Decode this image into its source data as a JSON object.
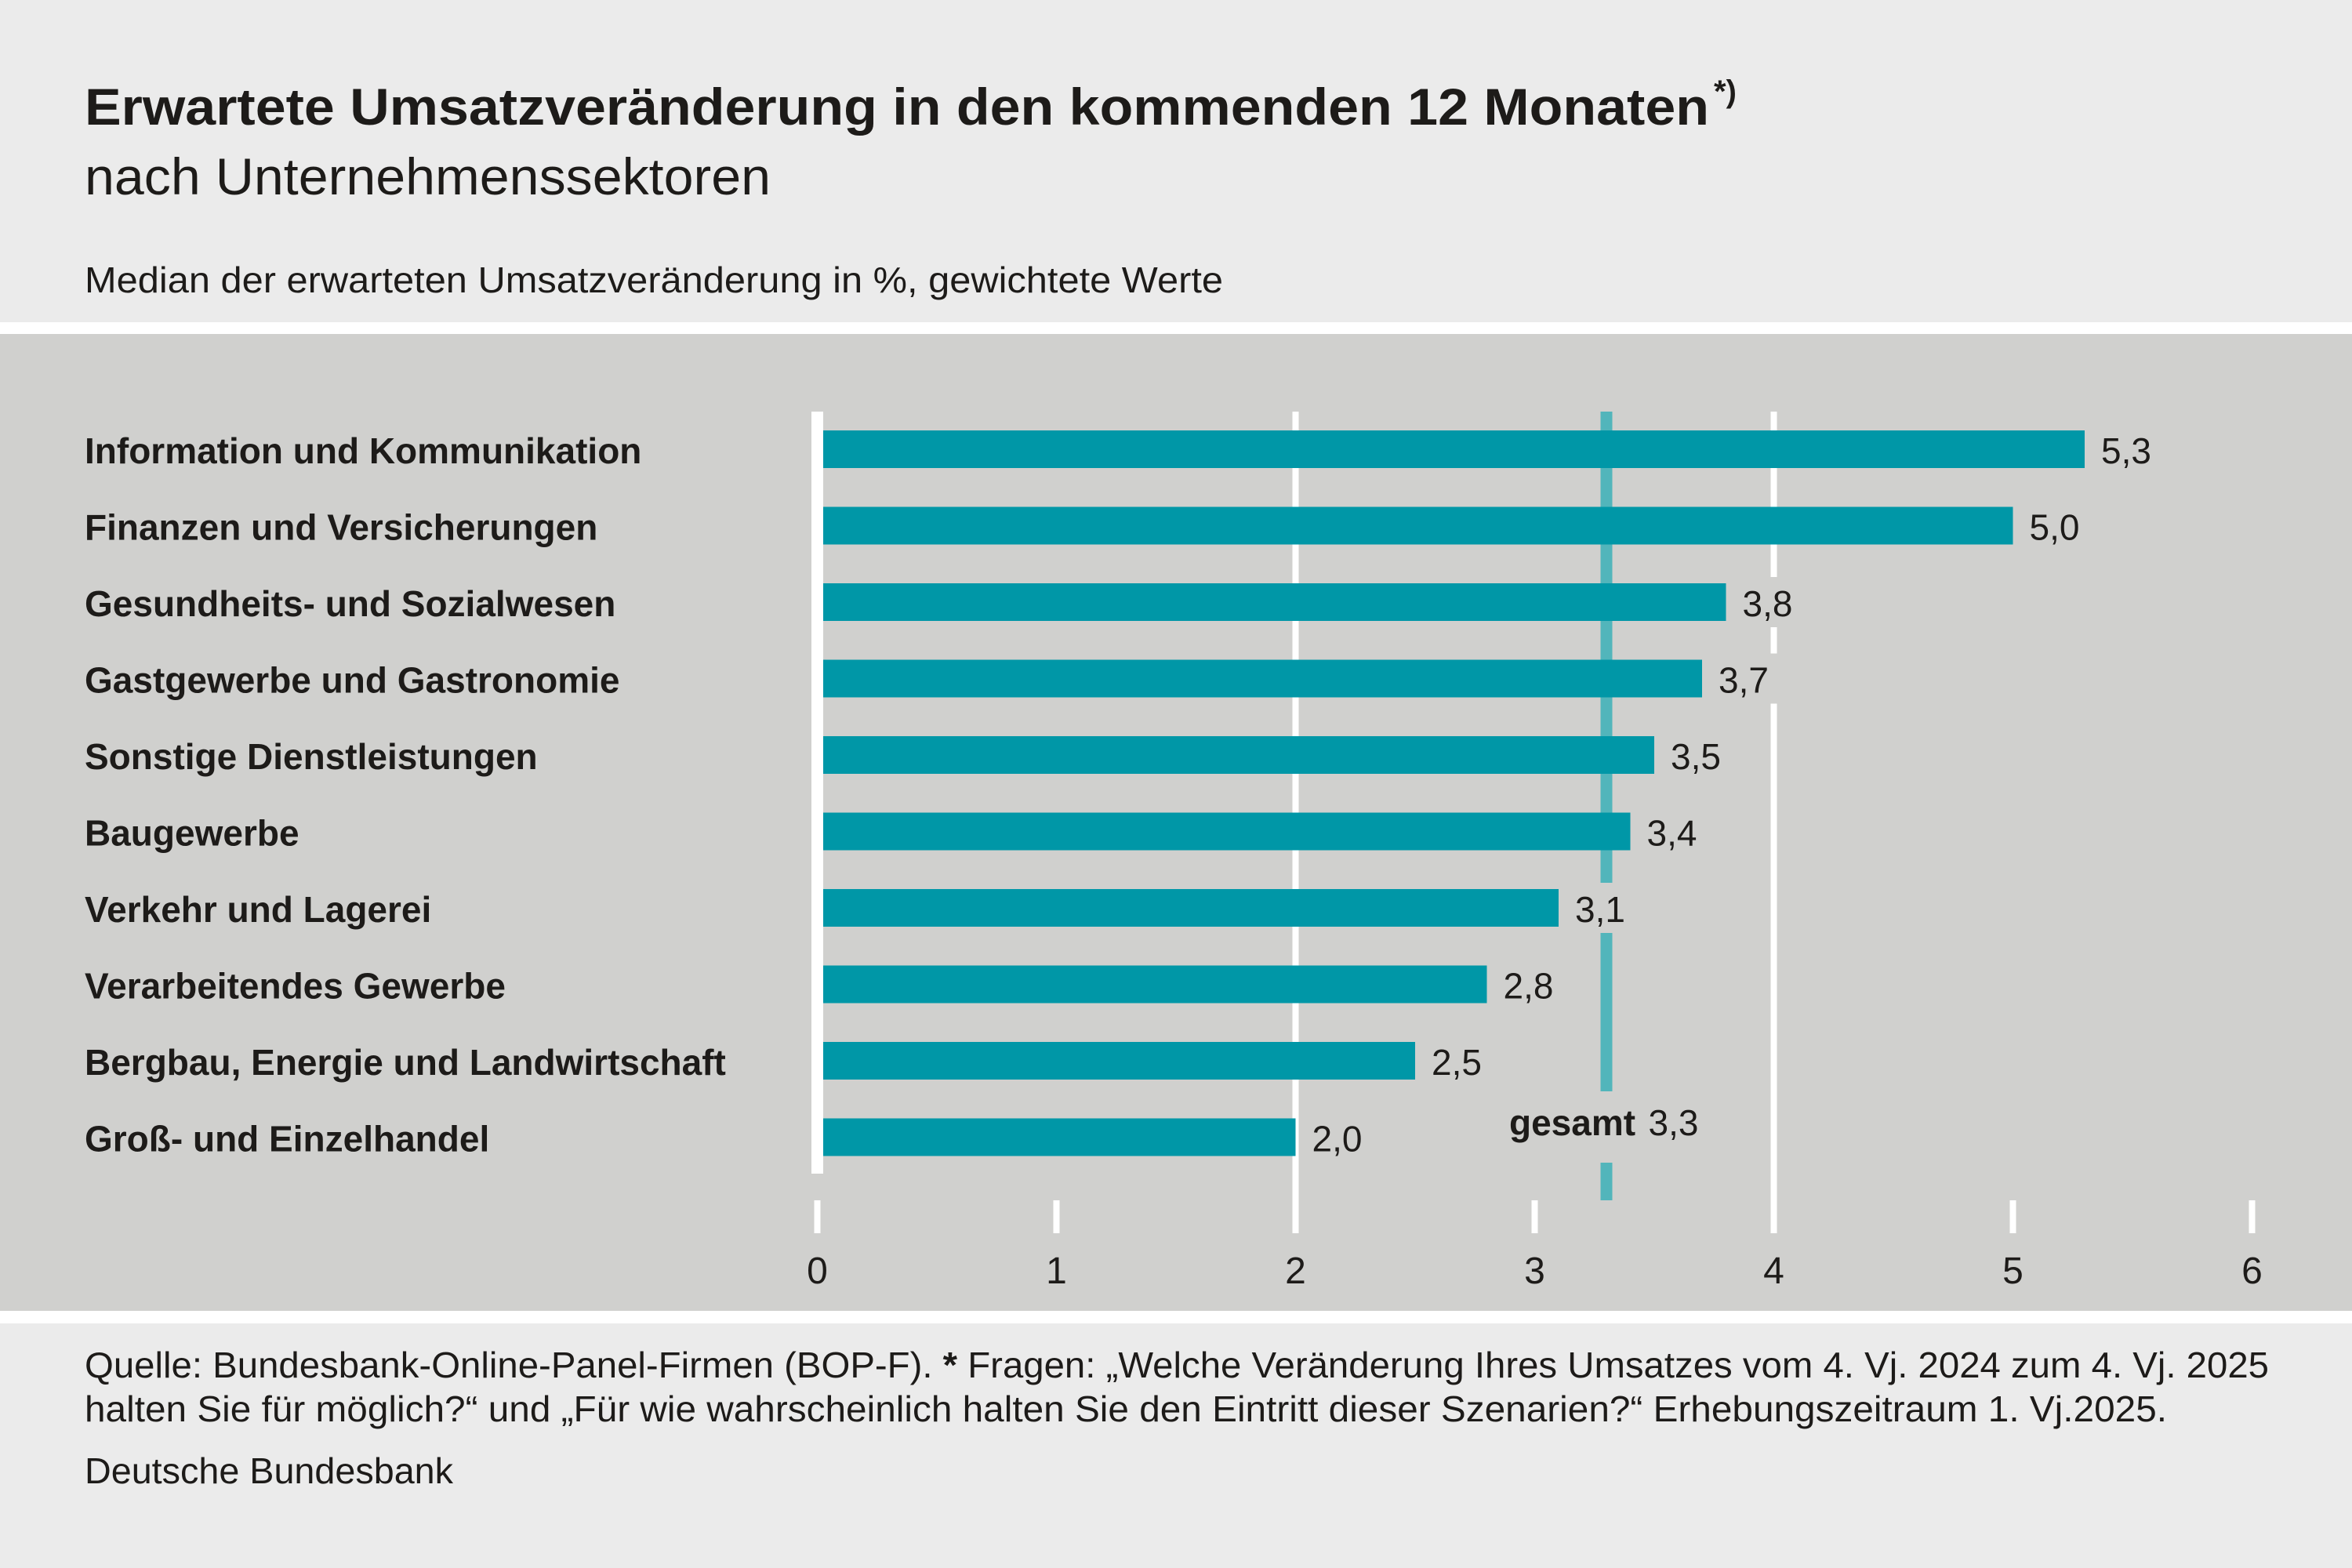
{
  "header": {
    "title": "Erwartete Umsatzveränderung in den kommenden 12 Monaten",
    "title_marker": "*)",
    "subtitle": "nach Unternehmenssektoren",
    "unit_note": "Median der erwarteten Umsatzveränderung in %, gewichtete Werte"
  },
  "colors": {
    "header_bg": "#ebebeb",
    "chart_bg": "#d0d0ce",
    "separator": "#ffffff",
    "bar": "#0097a7",
    "reference_line": "#52b5bb",
    "gridline": "#ffffff",
    "text": "#1d1b19"
  },
  "chart_data": {
    "type": "bar",
    "orientation": "horizontal",
    "title": "Erwartete Umsatzveränderung in den kommenden 12 Monaten",
    "subtitle": "nach Unternehmenssektoren",
    "xlabel": "Median der erwarteten Umsatzveränderung in %, gewichtete Werte",
    "ylabel": "",
    "categories": [
      "Information und Kommunikation",
      "Finanzen und Versicherungen",
      "Gesundheits- und Sozialwesen",
      "Gastgewerbe und Gastronomie",
      "Sonstige Dienstleistungen",
      "Baugewerbe",
      "Verkehr und Lagerei",
      "Verarbeitendes Gewerbe",
      "Bergbau, Energie und Landwirtschaft",
      "Groß- und Einzelhandel"
    ],
    "values": [
      5.3,
      5.0,
      3.8,
      3.7,
      3.5,
      3.4,
      3.1,
      2.8,
      2.5,
      2.0
    ],
    "value_labels": [
      "5,3",
      "5,0",
      "3,8",
      "3,7",
      "3,5",
      "3,4",
      "3,1",
      "2,8",
      "2,5",
      "2,0"
    ],
    "xlim": [
      0,
      6
    ],
    "xticks": [
      0,
      1,
      2,
      3,
      4,
      5,
      6
    ],
    "xtick_labels": [
      "0",
      "1",
      "2",
      "3",
      "4",
      "5",
      "6"
    ],
    "major_gridlines": [
      0,
      2,
      4
    ],
    "grid": true,
    "legend": "none",
    "reference_line": {
      "name": "gesamt",
      "value": 3.3,
      "value_label": "3,3"
    }
  },
  "footer": {
    "source_line_1_prefix": "Quelle: Bundesbank-Online-Panel-Firmen (BOP-F). ",
    "source_line_1_star": "*",
    "source_line_1_rest": " Fragen: „Welche Veränderung Ihres Umsatzes vom 4. Vj. 2024 zum 4. Vj. 2025",
    "source_line_2": "halten Sie für möglich?“ und „Für wie wahrscheinlich halten Sie den Eintritt dieser Szenarien?“ Erhebungszeitraum 1. Vj.2025.",
    "publisher": "Deutsche Bundesbank"
  }
}
